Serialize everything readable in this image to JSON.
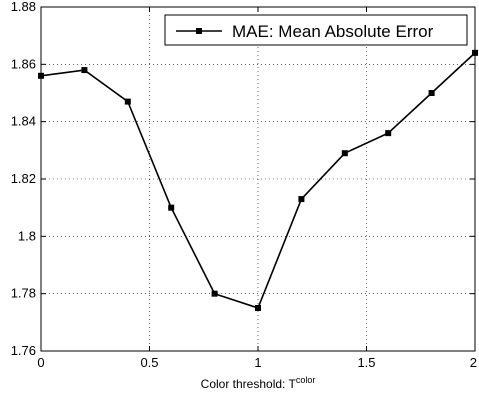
{
  "chart_data": {
    "type": "line",
    "title": "",
    "xlabel": "Color threshold: T",
    "xlabel_superscript": "color",
    "ylabel": "",
    "xlim": [
      0,
      2
    ],
    "ylim": [
      1.76,
      1.88
    ],
    "x_ticks": [
      "0",
      "0.5",
      "1",
      "1.5",
      "2"
    ],
    "y_ticks": [
      "1.76",
      "1.78",
      "1.8",
      "1.82",
      "1.84",
      "1.86",
      "1.88"
    ],
    "grid": true,
    "legend_position": "top-right",
    "series": [
      {
        "name": "MAE: Mean Absolute Error",
        "color": "#000000",
        "marker": "square",
        "x": [
          0,
          0.2,
          0.4,
          0.6,
          0.8,
          1.0,
          1.2,
          1.4,
          1.6,
          1.8,
          2.0
        ],
        "y": [
          1.856,
          1.858,
          1.847,
          1.81,
          1.78,
          1.775,
          1.813,
          1.829,
          1.836,
          1.85,
          1.864
        ]
      }
    ]
  }
}
